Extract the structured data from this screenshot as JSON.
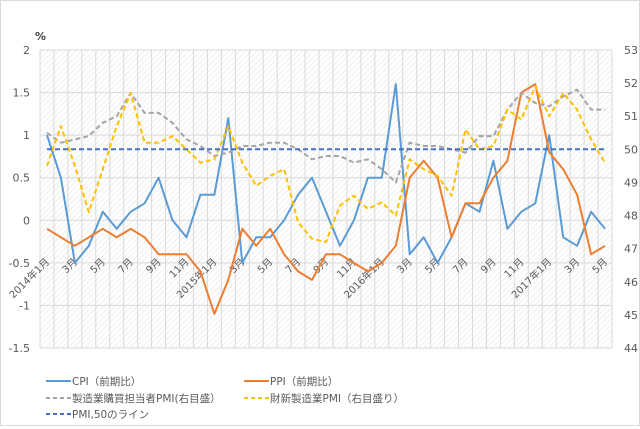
{
  "chart_data": {
    "type": "line",
    "title": "",
    "ylabel": "%",
    "ylim": [
      -1.5,
      2
    ],
    "yticks": [
      -1.5,
      -1,
      -0.5,
      0,
      0.5,
      1,
      1.5,
      2
    ],
    "y2lim": [
      44,
      53
    ],
    "y2ticks": [
      44,
      45,
      46,
      47,
      48,
      49,
      50,
      51,
      52,
      53
    ],
    "grid": true,
    "legend_position": "bottom",
    "x_tick_labels": [
      "2014年1月",
      "",
      "3月",
      "",
      "5月",
      "",
      "7月",
      "",
      "9月",
      "",
      "11月",
      "",
      "2015年1月",
      "",
      "3月",
      "",
      "5月",
      "",
      "7月",
      "",
      "9月",
      "",
      "11月",
      "",
      "2016年1月",
      "",
      "3月",
      "",
      "5月",
      "",
      "7月",
      "",
      "9月",
      "",
      "11月",
      "",
      "2017年1月",
      "",
      "3月",
      "",
      "5月"
    ],
    "x": [
      "2014-01",
      "2014-02",
      "2014-03",
      "2014-04",
      "2014-05",
      "2014-06",
      "2014-07",
      "2014-08",
      "2014-09",
      "2014-10",
      "2014-11",
      "2014-12",
      "2015-01",
      "2015-02",
      "2015-03",
      "2015-04",
      "2015-05",
      "2015-06",
      "2015-07",
      "2015-08",
      "2015-09",
      "2015-10",
      "2015-11",
      "2015-12",
      "2016-01",
      "2016-02",
      "2016-03",
      "2016-04",
      "2016-05",
      "2016-06",
      "2016-07",
      "2016-08",
      "2016-09",
      "2016-10",
      "2016-11",
      "2016-12",
      "2017-01",
      "2017-02",
      "2017-03",
      "2017-04",
      "2017-05"
    ],
    "series": [
      {
        "name": "CPI（前期比）",
        "axis": "left",
        "color": "#5b9bd5",
        "dash": false,
        "values": [
          1.0,
          0.5,
          -0.5,
          -0.3,
          0.1,
          -0.1,
          0.1,
          0.2,
          0.5,
          0.0,
          -0.2,
          0.3,
          0.3,
          1.2,
          -0.5,
          -0.2,
          -0.2,
          0.0,
          0.3,
          0.5,
          0.1,
          -0.3,
          0.0,
          0.5,
          0.5,
          1.6,
          -0.4,
          -0.2,
          -0.5,
          -0.2,
          0.2,
          0.1,
          0.7,
          -0.1,
          0.1,
          0.2,
          1.0,
          -0.2,
          -0.3,
          0.1,
          -0.1
        ]
      },
      {
        "name": "PPI（前期比）",
        "axis": "left",
        "color": "#ed7d31",
        "dash": false,
        "values": [
          -0.1,
          -0.2,
          -0.3,
          -0.2,
          -0.1,
          -0.2,
          -0.1,
          -0.2,
          -0.4,
          -0.4,
          -0.4,
          -0.6,
          -1.1,
          -0.7,
          -0.1,
          -0.3,
          -0.1,
          -0.4,
          -0.6,
          -0.7,
          -0.4,
          -0.4,
          -0.5,
          -0.6,
          -0.5,
          -0.3,
          0.5,
          0.7,
          0.5,
          -0.2,
          0.2,
          0.2,
          0.5,
          0.7,
          1.5,
          1.6,
          0.8,
          0.6,
          0.3,
          -0.4,
          -0.3
        ]
      },
      {
        "name": "製造業購買担当者PMI(右目盛）",
        "axis": "right",
        "color": "#a5a5a5",
        "dash": true,
        "values": [
          50.5,
          50.2,
          50.3,
          50.4,
          50.8,
          51.0,
          51.7,
          51.1,
          51.1,
          50.8,
          50.3,
          50.1,
          49.8,
          49.9,
          50.1,
          50.1,
          50.2,
          50.2,
          50.0,
          49.7,
          49.8,
          49.8,
          49.6,
          49.7,
          49.4,
          49.0,
          50.2,
          50.1,
          50.1,
          50.0,
          49.9,
          50.4,
          50.4,
          51.2,
          51.7,
          51.4,
          51.3,
          51.6,
          51.8,
          51.2,
          51.2
        ]
      },
      {
        "name": "財新製造業PMI（右目盛り）",
        "axis": "right",
        "color": "#ffc000",
        "dash": true,
        "values": [
          49.5,
          50.7,
          49.5,
          48.1,
          49.4,
          50.7,
          51.7,
          50.2,
          50.2,
          50.4,
          50.0,
          49.6,
          49.7,
          50.7,
          49.6,
          48.9,
          49.2,
          49.4,
          47.8,
          47.3,
          47.2,
          48.3,
          48.6,
          48.2,
          48.4,
          48.0,
          49.7,
          49.4,
          49.2,
          48.6,
          50.6,
          50.0,
          50.1,
          51.2,
          50.9,
          51.9,
          51.0,
          51.7,
          51.2,
          50.3,
          49.6
        ]
      },
      {
        "name": "PMI,50のライン",
        "axis": "right",
        "color": "#4472c4",
        "dash": true,
        "values": [
          50,
          50,
          50,
          50,
          50,
          50,
          50,
          50,
          50,
          50,
          50,
          50,
          50,
          50,
          50,
          50,
          50,
          50,
          50,
          50,
          50,
          50,
          50,
          50,
          50,
          50,
          50,
          50,
          50,
          50,
          50,
          50,
          50,
          50,
          50,
          50,
          50,
          50,
          50,
          50,
          50
        ]
      }
    ]
  },
  "legend": {
    "cpi": "CPI（前期比）",
    "ppi": "PPI（前期比）",
    "pmi_official": "製造業購買担当者PMI(右目盛）",
    "pmi_caixin": "財新製造業PMI（右目盛り）",
    "pmi_50": "PMI,50のライン"
  },
  "axis": {
    "left_unit": "%"
  }
}
